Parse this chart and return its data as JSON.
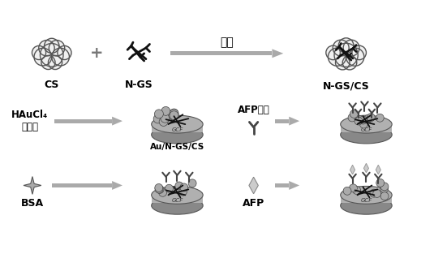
{
  "figure_bg": "#ffffff",
  "text_color": "#000000",
  "arrow_color": "#999999",
  "cloud_face": "#f0f0f0",
  "cloud_edge": "#555555",
  "ngs_color": "#111111",
  "electrode_top": "#b0b0b0",
  "electrode_side": "#888888",
  "electrode_edge": "#555555",
  "gce_text_color": "#333333",
  "nano_color": "#aaaaaa",
  "nano_edge": "#444444",
  "graphene_color": "#111111",
  "antibody_color": "#444444",
  "antigen_color": "#cccccc",
  "antigen_edge": "#888888",
  "bsa_color": "#888888",
  "labels": {
    "CS": "CS",
    "NGS": "N-GS",
    "NGSCS": "N-GS/CS",
    "HAuCl4": "HAuCl₄",
    "dianziji": "电沉积",
    "AuNGSCS": "Au/N-GS/CS",
    "AFPantibody": "AFP抗体",
    "BSA": "BSA",
    "AFP": "AFP",
    "chaosheng": "超声",
    "GCE": "GCF"
  }
}
